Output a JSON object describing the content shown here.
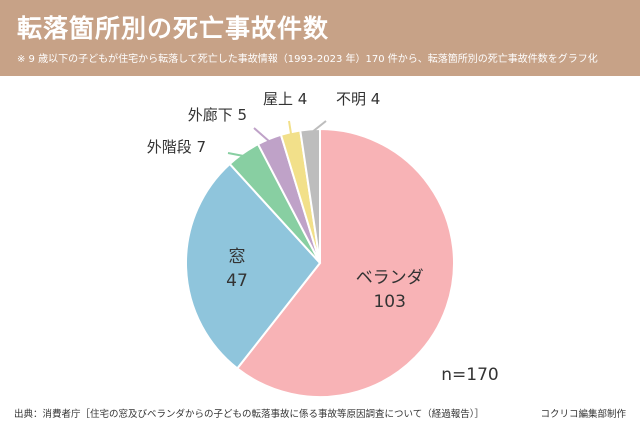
{
  "header": {
    "title": "転落箇所別の死亡事故件数",
    "subtitle": "※ 9 歳以下の子どもが住宅から転落して死亡した事故情報（1993-2023 年）170 件から、転落箇所別の死亡事故件数をグラフ化"
  },
  "footer": {
    "source": "出典：消費者庁［住宅の窓及びベランダからの子どもの転落事故に係る事故等原因調査について（経過報告）］",
    "credit": "コクリコ編集部制作"
  },
  "chart_data": {
    "type": "pie",
    "total_label": "n=170",
    "start": "12 o'clock, clockwise",
    "slices": [
      {
        "label": "ベランダ",
        "value": 103,
        "color": "#f8b3b6"
      },
      {
        "label": "窓",
        "value": 47,
        "color": "#8fc5dc"
      },
      {
        "label": "外階段",
        "value": 7,
        "color": "#88cfa2"
      },
      {
        "label": "外廊下",
        "value": 5,
        "color": "#bfa2c8"
      },
      {
        "label": "屋上",
        "value": 4,
        "color": "#f2e08a"
      },
      {
        "label": "不明",
        "value": 4,
        "color": "#bdbdbd"
      }
    ]
  }
}
